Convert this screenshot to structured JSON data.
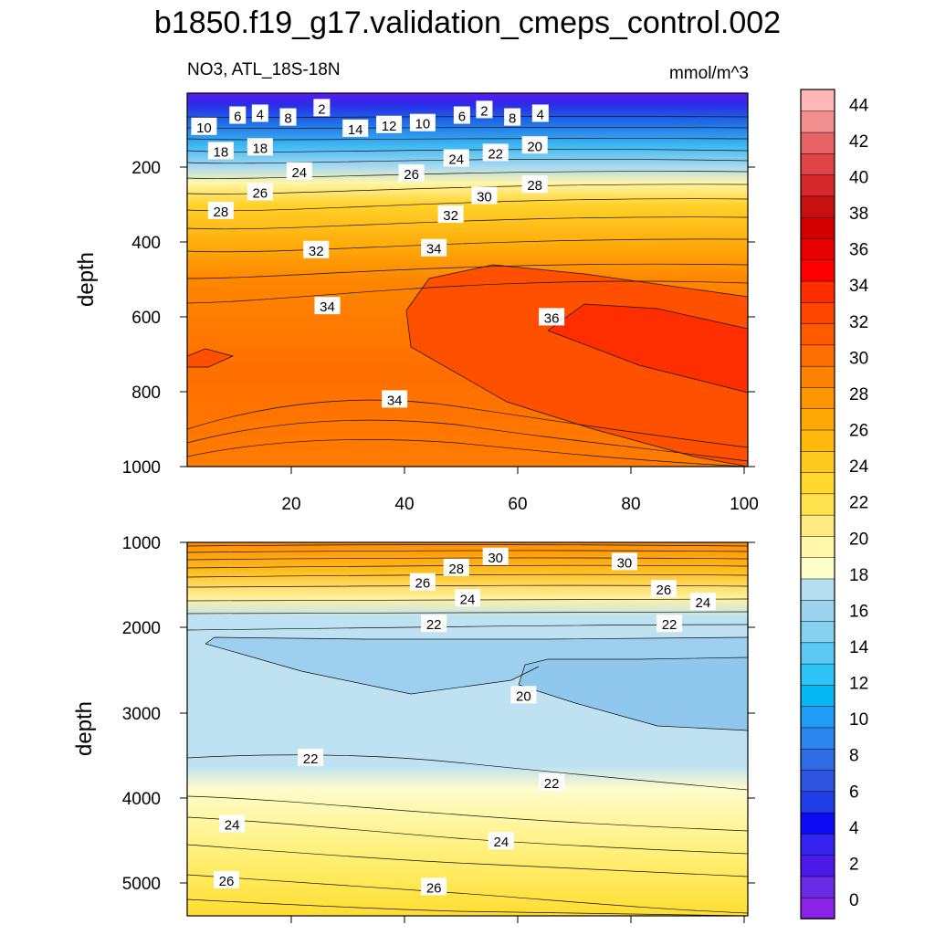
{
  "colors": {
    "contour_line": "#111111",
    "label_bg": "#ffffff"
  },
  "chart_data": [
    {
      "type": "heatmap",
      "panel": "upper",
      "title": "b1850.f19_g17.validation_cmeps_control.002",
      "subtitle_left": "NO3, ATL_18S-18N",
      "subtitle_right": "mmol/m^3",
      "xlabel": "",
      "ylabel": "depth",
      "xlim": [
        0,
        100
      ],
      "ylim": [
        1000,
        0
      ],
      "xticks": [
        "20",
        "40",
        "60",
        "80",
        "100"
      ],
      "yticks": [
        "200",
        "400",
        "600",
        "800",
        "1000"
      ],
      "grid": false,
      "contour_labels": [
        {
          "value": "2",
          "x": 24,
          "depth": 40
        },
        {
          "value": "4",
          "x": 13,
          "depth": 55
        },
        {
          "value": "6",
          "x": 9,
          "depth": 60
        },
        {
          "value": "8",
          "x": 18,
          "depth": 65
        },
        {
          "value": "10",
          "x": 3,
          "depth": 90
        },
        {
          "value": "14",
          "x": 30,
          "depth": 95
        },
        {
          "value": "12",
          "x": 36,
          "depth": 85
        },
        {
          "value": "10",
          "x": 42,
          "depth": 80
        },
        {
          "value": "6",
          "x": 49,
          "depth": 60
        },
        {
          "value": "2",
          "x": 53,
          "depth": 45
        },
        {
          "value": "8",
          "x": 58,
          "depth": 65
        },
        {
          "value": "4",
          "x": 63,
          "depth": 55
        },
        {
          "value": "18",
          "x": 6,
          "depth": 155
        },
        {
          "value": "18",
          "x": 13,
          "depth": 145
        },
        {
          "value": "20",
          "x": 62,
          "depth": 140
        },
        {
          "value": "22",
          "x": 55,
          "depth": 160
        },
        {
          "value": "24",
          "x": 48,
          "depth": 175
        },
        {
          "value": "24",
          "x": 20,
          "depth": 210
        },
        {
          "value": "26",
          "x": 40,
          "depth": 215
        },
        {
          "value": "26",
          "x": 13,
          "depth": 265
        },
        {
          "value": "28",
          "x": 62,
          "depth": 245
        },
        {
          "value": "30",
          "x": 53,
          "depth": 275
        },
        {
          "value": "28",
          "x": 6,
          "depth": 315
        },
        {
          "value": "32",
          "x": 47,
          "depth": 325
        },
        {
          "value": "32",
          "x": 23,
          "depth": 420
        },
        {
          "value": "34",
          "x": 44,
          "depth": 415
        },
        {
          "value": "34",
          "x": 25,
          "depth": 570
        },
        {
          "value": "36",
          "x": 65,
          "depth": 600
        },
        {
          "value": "34",
          "x": 37,
          "depth": 820
        }
      ]
    },
    {
      "type": "heatmap",
      "panel": "lower",
      "xlabel": "",
      "ylabel": "depth",
      "xlim": [
        0,
        100
      ],
      "ylim": [
        5400,
        1000
      ],
      "yticks": [
        "1000",
        "2000",
        "3000",
        "4000",
        "5000"
      ],
      "grid": false,
      "contour_labels": [
        {
          "value": "30",
          "x": 55,
          "depth": 1170
        },
        {
          "value": "30",
          "x": 78,
          "depth": 1230
        },
        {
          "value": "28",
          "x": 48,
          "depth": 1300
        },
        {
          "value": "26",
          "x": 42,
          "depth": 1470
        },
        {
          "value": "26",
          "x": 85,
          "depth": 1550
        },
        {
          "value": "24",
          "x": 50,
          "depth": 1660
        },
        {
          "value": "24",
          "x": 92,
          "depth": 1700
        },
        {
          "value": "22",
          "x": 44,
          "depth": 1960
        },
        {
          "value": "22",
          "x": 86,
          "depth": 1960
        },
        {
          "value": "20",
          "x": 60,
          "depth": 2800
        },
        {
          "value": "22",
          "x": 22,
          "depth": 3540
        },
        {
          "value": "22",
          "x": 65,
          "depth": 3830
        },
        {
          "value": "24",
          "x": 8,
          "depth": 4320
        },
        {
          "value": "24",
          "x": 56,
          "depth": 4520
        },
        {
          "value": "26",
          "x": 7,
          "depth": 4980
        },
        {
          "value": "26",
          "x": 44,
          "depth": 5060
        }
      ]
    }
  ],
  "colorbar": {
    "labels": [
      "0",
      "2",
      "4",
      "6",
      "8",
      "10",
      "12",
      "14",
      "16",
      "18",
      "20",
      "22",
      "24",
      "26",
      "28",
      "30",
      "32",
      "34",
      "36",
      "38",
      "40",
      "42",
      "44"
    ],
    "colors": [
      "#8B22E8",
      "#6A2BE5",
      "#4B1AE8",
      "#3524F0",
      "#0B0BF5",
      "#1F3EE8",
      "#2D55E0",
      "#2E6CE8",
      "#2A86F0",
      "#1F9CF5",
      "#07B8F7",
      "#2EC4F5",
      "#5CC8F4",
      "#85D1F0",
      "#9CD3EE",
      "#B6DFF1",
      "#FFFFCC",
      "#FFF6A8",
      "#FFEB80",
      "#FFE24E",
      "#FFD72E",
      "#FFCA1E",
      "#FFBA10",
      "#FFA704",
      "#FF9600",
      "#FF8200",
      "#FF6E00",
      "#FF5A00",
      "#FF4600",
      "#FF2D00",
      "#FF0000",
      "#E80000",
      "#D40000",
      "#C71010",
      "#D62828",
      "#E04444",
      "#E86464",
      "#F29090",
      "#FFB6B6"
    ]
  }
}
